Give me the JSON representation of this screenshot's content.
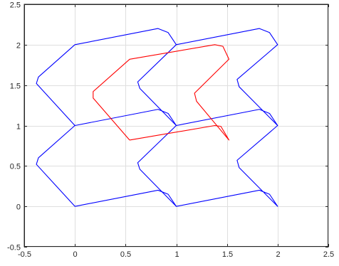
{
  "chart_data": {
    "type": "line",
    "title": "",
    "xlabel": "",
    "ylabel": "",
    "xlim": [
      -0.5,
      2.5
    ],
    "ylim": [
      -0.5,
      2.5
    ],
    "xticks": [
      "-0.5",
      "0",
      "0.5",
      "1",
      "1.5",
      "2",
      "2.5"
    ],
    "yticks": [
      "-0.5",
      "0",
      "0.5",
      "1",
      "1.5",
      "2",
      "2.5"
    ],
    "grid": true,
    "box": true,
    "series": [
      {
        "color": "#0000ff",
        "points": [
          [
            0,
            0
          ],
          [
            0.82,
            0.2
          ],
          [
            0.92,
            0.15
          ],
          [
            1,
            0
          ],
          [
            1.82,
            0.2
          ],
          [
            1.92,
            0.15
          ],
          [
            2,
            0
          ],
          [
            1.62,
            0.48
          ],
          [
            1.6,
            0.57
          ],
          [
            2,
            1
          ],
          [
            1.62,
            1.48
          ],
          [
            1.6,
            1.57
          ],
          [
            2,
            2
          ],
          [
            1.92,
            2.15
          ],
          [
            1.82,
            2.2
          ],
          [
            1,
            2
          ],
          [
            0.92,
            2.15
          ],
          [
            0.82,
            2.2
          ],
          [
            0,
            2
          ],
          [
            -0.36,
            1.6
          ],
          [
            -0.38,
            1.52
          ],
          [
            0,
            1
          ],
          [
            -0.36,
            0.6
          ],
          [
            -0.38,
            0.52
          ],
          [
            0,
            0
          ]
        ]
      },
      {
        "color": "#0000ff",
        "points": [
          [
            0,
            1
          ],
          [
            0.82,
            1.2
          ],
          [
            0.92,
            1.15
          ],
          [
            1,
            1
          ],
          [
            1.82,
            1.2
          ],
          [
            1.92,
            1.15
          ],
          [
            2,
            1
          ]
        ]
      },
      {
        "color": "#0000ff",
        "points": [
          [
            1,
            0
          ],
          [
            0.64,
            0.46
          ],
          [
            0.62,
            0.54
          ],
          [
            1,
            1
          ],
          [
            0.64,
            1.46
          ],
          [
            0.62,
            1.54
          ],
          [
            1,
            2
          ]
        ]
      },
      {
        "color": "#ff0000",
        "points": [
          [
            0.54,
            0.82
          ],
          [
            1.38,
            1
          ],
          [
            1.44,
            0.99
          ],
          [
            1.52,
            0.82
          ],
          [
            1.2,
            1.3
          ],
          [
            1.18,
            1.4
          ],
          [
            1.52,
            1.82
          ],
          [
            1.46,
            1.98
          ],
          [
            1.38,
            2
          ],
          [
            0.54,
            1.82
          ],
          [
            0.18,
            1.42
          ],
          [
            0.18,
            1.34
          ],
          [
            0.54,
            0.82
          ]
        ]
      }
    ]
  }
}
